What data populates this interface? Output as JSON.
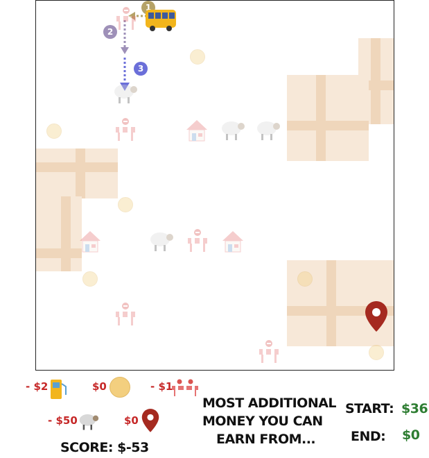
{
  "legend": {
    "fuel": {
      "cost": "- $2",
      "icon": "fuel-pump-icon"
    },
    "hay": {
      "cost": "$0",
      "icon": "hay-bale-icon"
    },
    "roadblock": {
      "cost": "- $1",
      "icon": "roadblock-icon"
    },
    "sheep": {
      "cost": "- $50",
      "icon": "sheep-icon"
    },
    "destination": {
      "cost": "$0",
      "icon": "map-pin-icon"
    }
  },
  "score": {
    "label": "SCORE:",
    "value": "$-53"
  },
  "question": {
    "line1": "MOST ADDITIONAL",
    "line2": "MONEY YOU CAN",
    "line3": "EARN FROM..."
  },
  "start": {
    "label": "START:",
    "value": "$36"
  },
  "end": {
    "label": "END:",
    "value": "$0"
  },
  "path_steps": [
    "1",
    "2",
    "3"
  ],
  "colors": {
    "step1": "#b5a267",
    "step2": "#9e90b8",
    "step3": "#6b6fd9",
    "pin": "#a52a20",
    "cost": "#c62828",
    "money": "#2e7d32"
  }
}
